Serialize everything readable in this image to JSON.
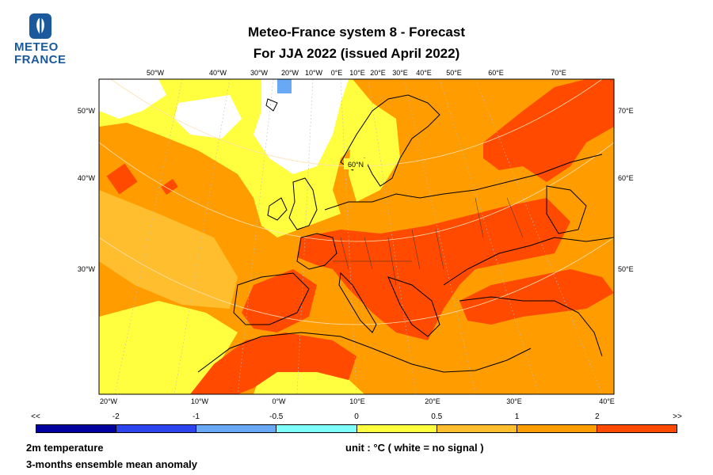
{
  "logo": {
    "line1": "METEO",
    "line2": "FRANCE",
    "brand_color": "#1a5a9c",
    "icon": "meteo-france-logo-icon"
  },
  "title": {
    "line1": "Meteo-France system 8  -  Forecast",
    "line2": "For JJA 2022      (issued April 2022)"
  },
  "map": {
    "top_lon_labels": [
      "50°W",
      "40°W",
      "30°W",
      "20°W",
      "10°W",
      "0°E",
      "10°E",
      "20°E",
      "30°E",
      "40°E",
      "50°E",
      "60°E",
      "70°E"
    ],
    "bottom_lon_labels": [
      "20°W",
      "10°W",
      "0°W",
      "10°E",
      "20°E",
      "30°E",
      "40°E"
    ],
    "left_lat_labels": [
      "50°W",
      "40°W",
      "30°W"
    ],
    "right_lat_labels": [
      "70°E",
      "60°E",
      "50°E"
    ],
    "center_label": "60°N"
  },
  "legend": {
    "labels": [
      "<<",
      "-2",
      "-1",
      "-0.5",
      "0",
      "0.5",
      "1",
      "2",
      ">>"
    ],
    "colors": [
      "#00009e",
      "#2b44ee",
      "#68a8f4",
      "#80ffff",
      "#ffff40",
      "#ffbe2e",
      "#ff9d00",
      "#ff4a00",
      "#c8001e"
    ]
  },
  "footer": {
    "variable": "2m temperature",
    "description": "3-months ensemble mean anomaly",
    "unit": "unit : °C  ( white = no signal )"
  }
}
